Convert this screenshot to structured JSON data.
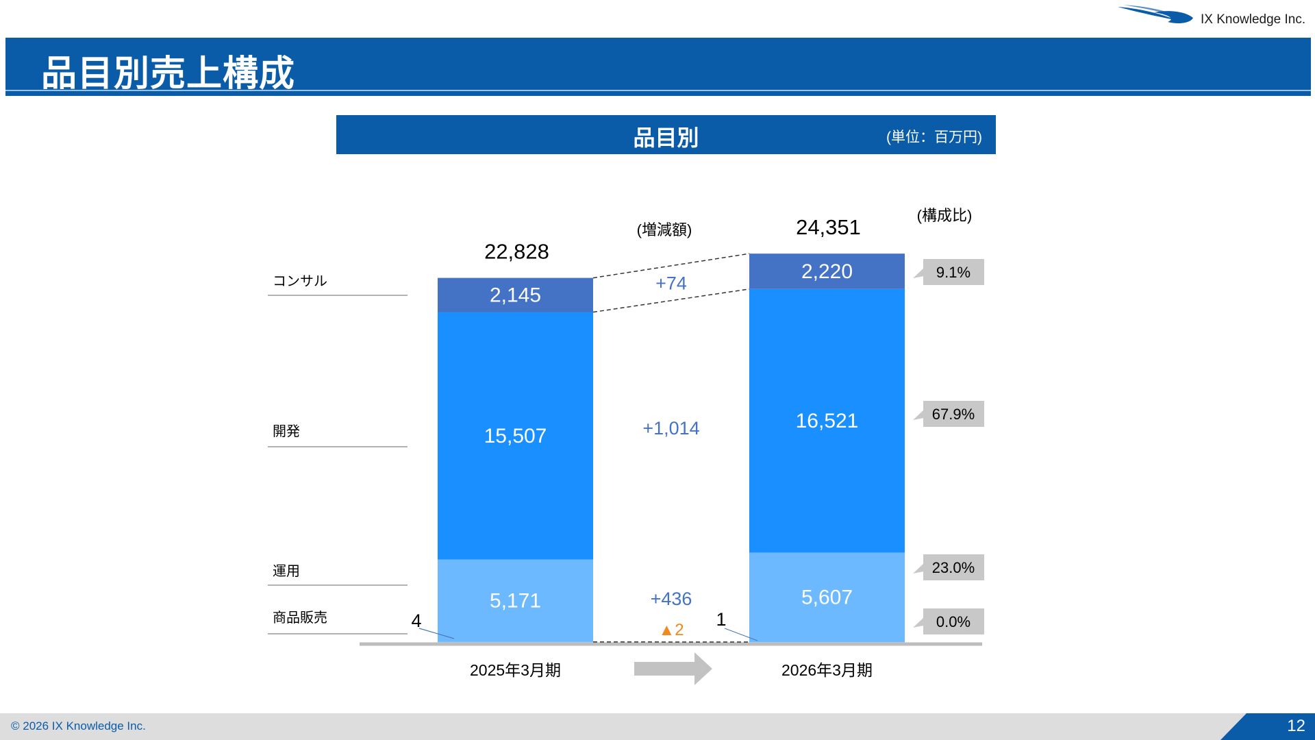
{
  "page": {
    "title": "品目別売上構成",
    "logo_text": "IX Knowledge Inc.",
    "copyright": "© 2026 IX Knowledge Inc.",
    "page_number": "12"
  },
  "chart_header": {
    "title": "品目別",
    "unit": "(単位：百万円)"
  },
  "colors": {
    "brand_blue": "#0a5ca9",
    "consul": "#4472c4",
    "dev": "#1a8fff",
    "ops": "#6cb9ff",
    "sales": "#9fd0ff",
    "change_positive": "#4472c4",
    "change_negative": "#f0891e",
    "callout": "#c8c8c8"
  },
  "chart_data": {
    "type": "bar",
    "stacked": true,
    "categories": [
      "2025年3月期",
      "2026年3月期"
    ],
    "series": [
      {
        "name": "商品販売",
        "values": [
          4,
          1
        ]
      },
      {
        "name": "運用",
        "values": [
          5171,
          5607
        ]
      },
      {
        "name": "開発",
        "values": [
          15507,
          16521
        ]
      },
      {
        "name": "コンサル",
        "values": [
          2145,
          2220
        ]
      }
    ],
    "totals": [
      "22,828",
      "24,351"
    ],
    "changes": [
      "▲2",
      "+436",
      "+1,014",
      "+74"
    ],
    "shares": [
      "0.0%",
      "23.0%",
      "67.9%",
      "9.1%"
    ],
    "change_header": "(増減額)",
    "share_header": "(構成比)",
    "ylim": [
      0,
      25000
    ]
  }
}
